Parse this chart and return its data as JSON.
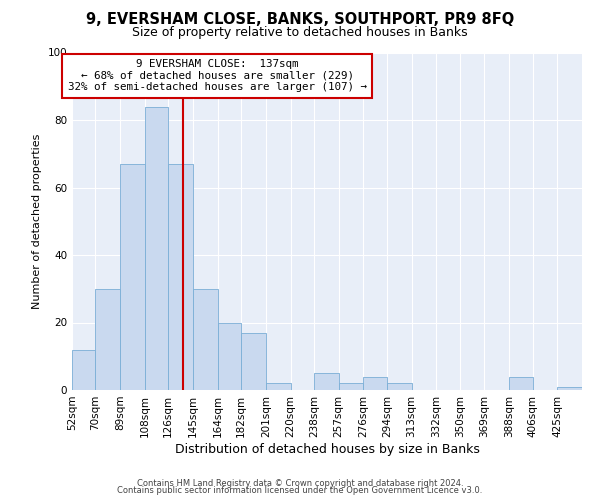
{
  "title": "9, EVERSHAM CLOSE, BANKS, SOUTHPORT, PR9 8FQ",
  "subtitle": "Size of property relative to detached houses in Banks",
  "xlabel": "Distribution of detached houses by size in Banks",
  "ylabel": "Number of detached properties",
  "footer_line1": "Contains HM Land Registry data © Crown copyright and database right 2024.",
  "footer_line2": "Contains public sector information licensed under the Open Government Licence v3.0.",
  "bin_labels": [
    "52sqm",
    "70sqm",
    "89sqm",
    "108sqm",
    "126sqm",
    "145sqm",
    "164sqm",
    "182sqm",
    "201sqm",
    "220sqm",
    "238sqm",
    "257sqm",
    "276sqm",
    "294sqm",
    "313sqm",
    "332sqm",
    "350sqm",
    "369sqm",
    "388sqm",
    "406sqm",
    "425sqm"
  ],
  "bin_edges": [
    52,
    70,
    89,
    108,
    126,
    145,
    164,
    182,
    201,
    220,
    238,
    257,
    276,
    294,
    313,
    332,
    350,
    369,
    388,
    406,
    425
  ],
  "bar_heights": [
    12,
    30,
    67,
    84,
    67,
    30,
    20,
    17,
    2,
    0,
    5,
    2,
    4,
    2,
    0,
    0,
    0,
    0,
    4,
    0,
    1
  ],
  "bar_color": "#c9d9ef",
  "bar_edge_color": "#7aaed6",
  "property_size": 137,
  "vline_color": "#cc0000",
  "annotation_line1": "9 EVERSHAM CLOSE:  137sqm",
  "annotation_line2": "← 68% of detached houses are smaller (229)",
  "annotation_line3": "32% of semi-detached houses are larger (107) →",
  "annotation_box_facecolor": "#ffffff",
  "annotation_box_edgecolor": "#cc0000",
  "fig_bg_color": "#ffffff",
  "plot_bg_color": "#e8eef8",
  "grid_color": "#ffffff",
  "ylim": [
    0,
    100
  ],
  "yticks": [
    0,
    20,
    40,
    60,
    80,
    100
  ],
  "title_fontsize": 10.5,
  "subtitle_fontsize": 9,
  "ylabel_fontsize": 8,
  "xlabel_fontsize": 9,
  "tick_fontsize": 7.5,
  "footer_fontsize": 6,
  "footer_color": "#444444"
}
